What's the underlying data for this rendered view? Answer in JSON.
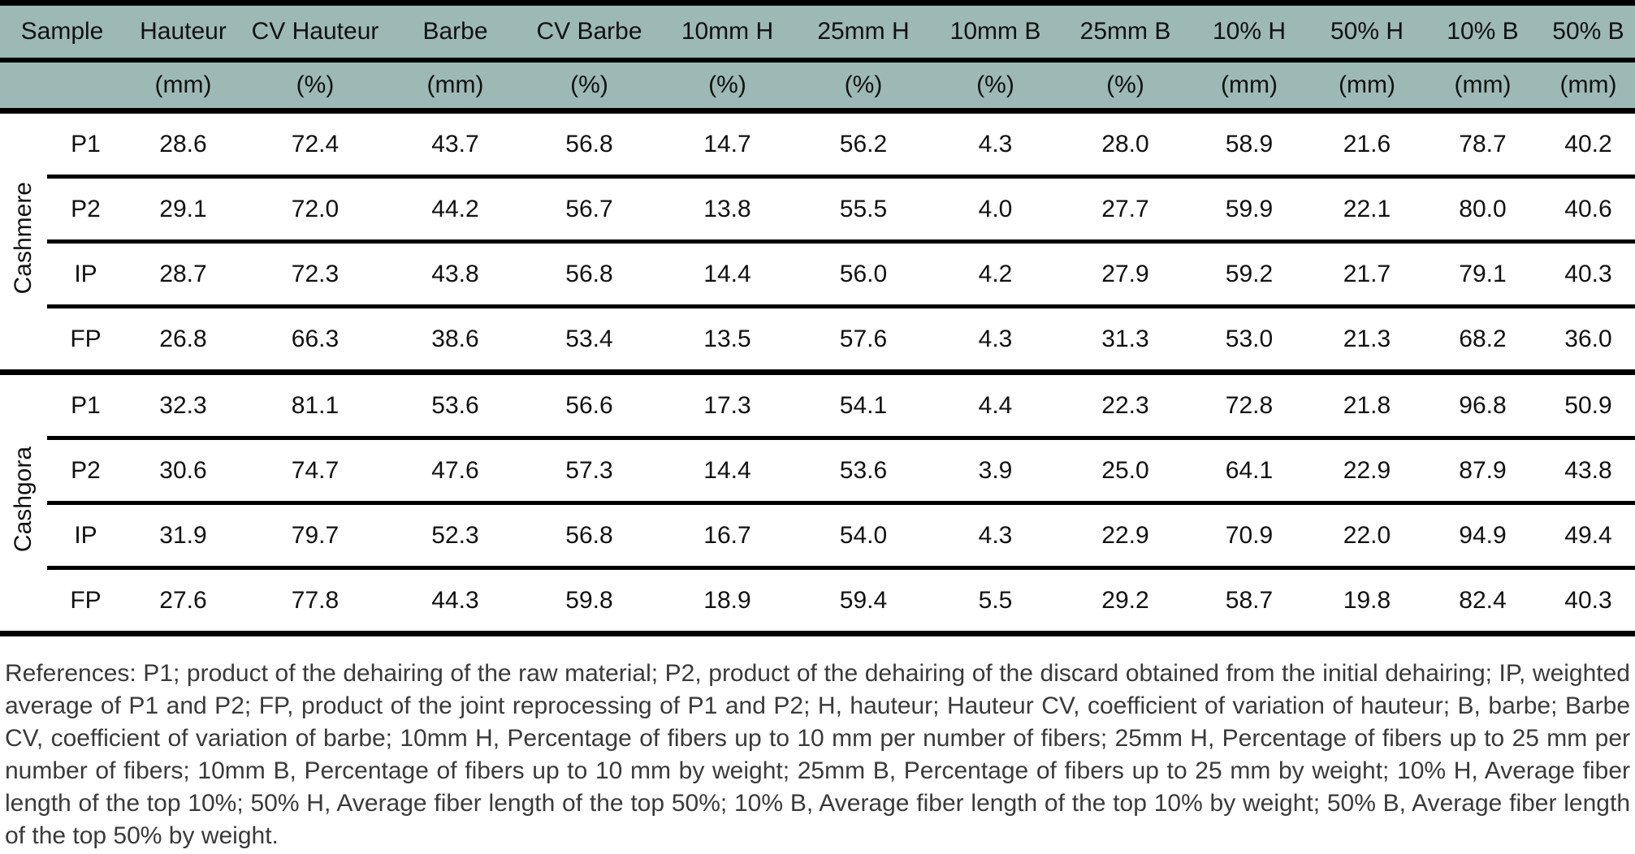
{
  "colors": {
    "header_bg": "#9db9b5",
    "rule": "#000000",
    "footnote_text": "#3a3a3a"
  },
  "table": {
    "columns": [
      {
        "label": "Sample",
        "unit": ""
      },
      {
        "label": "Hauteur",
        "unit": "(mm)"
      },
      {
        "label": "CV Hauteur",
        "unit": "(%)"
      },
      {
        "label": "Barbe",
        "unit": "(mm)"
      },
      {
        "label": "CV Barbe",
        "unit": "(%)"
      },
      {
        "label": "10mm H",
        "unit": "(%)"
      },
      {
        "label": "25mm H",
        "unit": "(%)"
      },
      {
        "label": "10mm B",
        "unit": "(%)"
      },
      {
        "label": "25mm B",
        "unit": "(%)"
      },
      {
        "label": "10% H",
        "unit": "(mm)"
      },
      {
        "label": "50% H",
        "unit": "(mm)"
      },
      {
        "label": "10% B",
        "unit": "(mm)"
      },
      {
        "label": "50% B",
        "unit": "(mm)"
      }
    ],
    "groups": [
      {
        "name": "Cashmere",
        "rows": [
          {
            "sample": "P1",
            "values": [
              "28.6",
              "72.4",
              "43.7",
              "56.8",
              "14.7",
              "56.2",
              "4.3",
              "28.0",
              "58.9",
              "21.6",
              "78.7",
              "40.2"
            ]
          },
          {
            "sample": "P2",
            "values": [
              "29.1",
              "72.0",
              "44.2",
              "56.7",
              "13.8",
              "55.5",
              "4.0",
              "27.7",
              "59.9",
              "22.1",
              "80.0",
              "40.6"
            ]
          },
          {
            "sample": "IP",
            "values": [
              "28.7",
              "72.3",
              "43.8",
              "56.8",
              "14.4",
              "56.0",
              "4.2",
              "27.9",
              "59.2",
              "21.7",
              "79.1",
              "40.3"
            ]
          },
          {
            "sample": "FP",
            "values": [
              "26.8",
              "66.3",
              "38.6",
              "53.4",
              "13.5",
              "57.6",
              "4.3",
              "31.3",
              "53.0",
              "21.3",
              "68.2",
              "36.0"
            ]
          }
        ]
      },
      {
        "name": "Cashgora",
        "rows": [
          {
            "sample": "P1",
            "values": [
              "32.3",
              "81.1",
              "53.6",
              "56.6",
              "17.3",
              "54.1",
              "4.4",
              "22.3",
              "72.8",
              "21.8",
              "96.8",
              "50.9"
            ]
          },
          {
            "sample": "P2",
            "values": [
              "30.6",
              "74.7",
              "47.6",
              "57.3",
              "14.4",
              "53.6",
              "3.9",
              "25.0",
              "64.1",
              "22.9",
              "87.9",
              "43.8"
            ]
          },
          {
            "sample": "IP",
            "values": [
              "31.9",
              "79.7",
              "52.3",
              "56.8",
              "16.7",
              "54.0",
              "4.3",
              "22.9",
              "70.9",
              "22.0",
              "94.9",
              "49.4"
            ]
          },
          {
            "sample": "FP",
            "values": [
              "27.6",
              "77.8",
              "44.3",
              "59.8",
              "18.9",
              "59.4",
              "5.5",
              "29.2",
              "58.7",
              "19.8",
              "82.4",
              "40.3"
            ]
          }
        ]
      }
    ]
  },
  "footnote": "References: P1; product of the dehairing of the raw material; P2, product of the dehairing of the discard obtained from the initial dehairing; IP, weighted average of P1 and P2; FP, product of the joint reprocessing of P1 and P2; H, hauteur; Hauteur CV, coefficient of variation of hauteur; B, barbe; Barbe CV, coefficient of variation of barbe; 10mm H, Percentage of fibers up to 10 mm per number of fibers; 25mm H, Percentage of fibers up to 25 mm per number of fibers; 10mm B, Percentage of fibers up to 10 mm by weight; 25mm B, Percentage of fibers up to 25 mm by weight; 10% H, Average fiber length of the top 10%; 50% H, Average fiber length of the top 50%; 10% B, Average fiber length of the top 10% by weight; 50% B, Average fiber length of the top 50% by weight."
}
